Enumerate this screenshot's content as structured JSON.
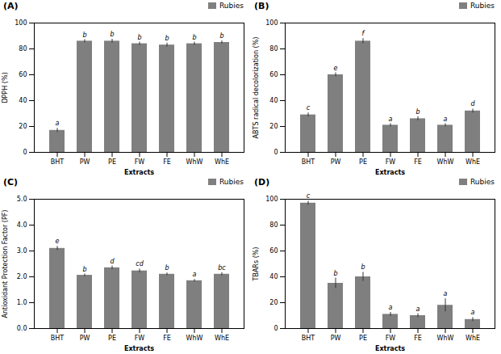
{
  "chart_data": [
    {
      "type": "bar",
      "title": "(A)",
      "categories": [
        "BHT",
        "PW",
        "PE",
        "FW",
        "FE",
        "WhW",
        "WhE"
      ],
      "series": [
        {
          "name": "Rubies",
          "color": "#7f7f7f",
          "values": [
            17,
            86,
            86,
            84,
            83,
            84,
            85
          ],
          "errors": [
            1.5,
            1.2,
            1.5,
            1.2,
            1.5,
            1.2,
            1.2
          ]
        }
      ],
      "annotations": [
        "a",
        "b",
        "b",
        "b",
        "b",
        "b",
        "b"
      ],
      "xlabel": "Extracts",
      "ylabel": "DPPH (%)",
      "ylim": [
        0,
        100
      ],
      "yticks": [
        0,
        20,
        40,
        60,
        80,
        100
      ],
      "grid": false,
      "legend": "upper right"
    },
    {
      "type": "bar",
      "title": "(B)",
      "categories": [
        "BHT",
        "PW",
        "PE",
        "FW",
        "FE",
        "WhW",
        "WhE"
      ],
      "series": [
        {
          "name": "Rubies",
          "color": "#7f7f7f",
          "values": [
            29,
            60,
            86,
            21,
            26,
            21,
            32
          ],
          "errors": [
            1.5,
            1.5,
            2.0,
            1.2,
            1.5,
            1.2,
            1.5
          ]
        }
      ],
      "annotations": [
        "c",
        "e",
        "f",
        "a",
        "b",
        "a",
        "d"
      ],
      "xlabel": "Extracts",
      "ylabel": "ABTS radical decolorization (%)",
      "ylim": [
        0,
        100
      ],
      "yticks": [
        0,
        20,
        40,
        60,
        80,
        100
      ],
      "grid": false,
      "legend": "upper right"
    },
    {
      "type": "bar",
      "title": "(C)",
      "categories": [
        "BHT",
        "PW",
        "PE",
        "FW",
        "FE",
        "WhW",
        "WhE"
      ],
      "series": [
        {
          "name": "Rubies",
          "color": "#7f7f7f",
          "values": [
            3.1,
            2.06,
            2.35,
            2.23,
            2.1,
            1.85,
            2.1
          ],
          "errors": [
            0.08,
            0.05,
            0.07,
            0.07,
            0.05,
            0.05,
            0.06
          ]
        }
      ],
      "annotations": [
        "e",
        "b",
        "d",
        "cd",
        "b",
        "a",
        "bc"
      ],
      "xlabel": "Extracts",
      "ylabel": "Antioxidant Protection Factor (PF)",
      "ylim": [
        0,
        5
      ],
      "yticks": [
        0,
        1,
        2,
        3,
        4,
        5
      ],
      "grid": false,
      "legend": "upper right"
    },
    {
      "type": "bar",
      "title": "(D)",
      "categories": [
        "BHT",
        "PW",
        "PE",
        "FW",
        "FE",
        "WhW",
        "WhE"
      ],
      "series": [
        {
          "name": "Rubies",
          "color": "#7f7f7f",
          "values": [
            97,
            35,
            40,
            11,
            10,
            18,
            7
          ],
          "errors": [
            1.5,
            4.0,
            3.5,
            1.5,
            1.5,
            5.0,
            1.5
          ]
        }
      ],
      "annotations": [
        "c",
        "b",
        "b",
        "a",
        "a",
        "a",
        "a"
      ],
      "xlabel": "Extracts",
      "ylabel": "TBARs (%)",
      "ylim": [
        0,
        100
      ],
      "yticks": [
        0,
        20,
        40,
        60,
        80,
        100
      ],
      "grid": false,
      "legend": "upper right"
    }
  ]
}
